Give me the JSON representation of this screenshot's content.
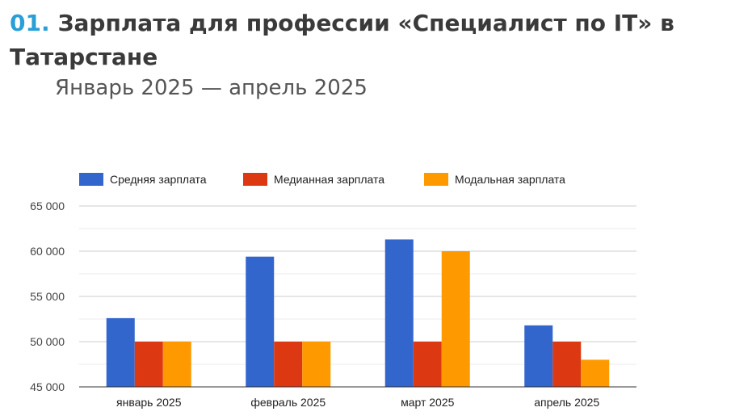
{
  "header": {
    "number": "01.",
    "title": "Зарплата для профессии «Специалист по IT» в Татарстане",
    "subtitle": "Январь 2025 — апрель 2025"
  },
  "chart_data": {
    "type": "bar",
    "categories": [
      "январь 2025",
      "февраль 2025",
      "март 2025",
      "апрель 2025"
    ],
    "series": [
      {
        "name": "Средняя зарплата",
        "color": "#3366cc",
        "values": [
          52600,
          59400,
          61300,
          51800
        ]
      },
      {
        "name": "Медианная зарплата",
        "color": "#dc3912",
        "values": [
          50000,
          50000,
          50000,
          50000
        ]
      },
      {
        "name": "Модальная зарплата",
        "color": "#ff9900",
        "values": [
          50000,
          50000,
          60000,
          48000
        ]
      }
    ],
    "ylim": [
      45000,
      65000
    ],
    "yticks": [
      45000,
      50000,
      55000,
      60000,
      65000
    ],
    "ytick_labels": [
      "45 000",
      "50 000",
      "55 000",
      "60 000",
      "65 000"
    ],
    "grid": true,
    "legend": "top"
  }
}
